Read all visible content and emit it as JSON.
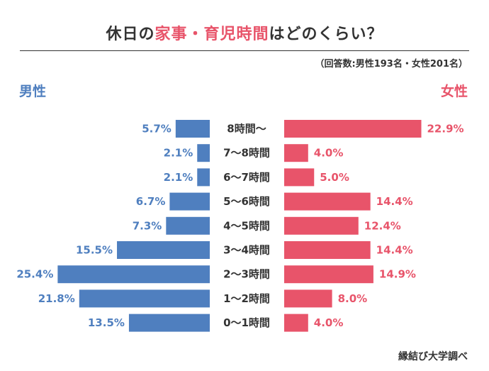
{
  "title": {
    "prefix": "休日の",
    "highlight": "家事・育児時間",
    "suffix": "はどのくらい？"
  },
  "note": "（回答数:男性193名・女性201名）",
  "source": "縁結び大学調べ",
  "colors": {
    "male": "#4f7fbf",
    "female": "#e8546a",
    "text": "#333333"
  },
  "chart_data": {
    "type": "bar",
    "orientation": "horizontal-diverging",
    "categories": [
      "8時間〜",
      "7〜8時間",
      "6〜7時間",
      "5〜6時間",
      "4〜5時間",
      "3〜4時間",
      "2〜3時間",
      "1〜2時間",
      "0〜1時間"
    ],
    "series": [
      {
        "name": "男性",
        "values": [
          5.7,
          2.1,
          2.1,
          6.7,
          7.3,
          15.5,
          25.4,
          21.8,
          13.5
        ],
        "labels": [
          "5.7%",
          "2.1%",
          "2.1%",
          "6.7%",
          "7.3%",
          "15.5%",
          "25.4%",
          "21.8%",
          "13.5%"
        ]
      },
      {
        "name": "女性",
        "values": [
          22.9,
          4.0,
          5.0,
          14.4,
          12.4,
          14.4,
          14.9,
          8.0,
          4.0
        ],
        "labels": [
          "22.9%",
          "4.0%",
          "5.0%",
          "14.4%",
          "12.4%",
          "14.4%",
          "14.9%",
          "8.0%",
          "4.0%"
        ]
      }
    ],
    "unit": "%"
  }
}
